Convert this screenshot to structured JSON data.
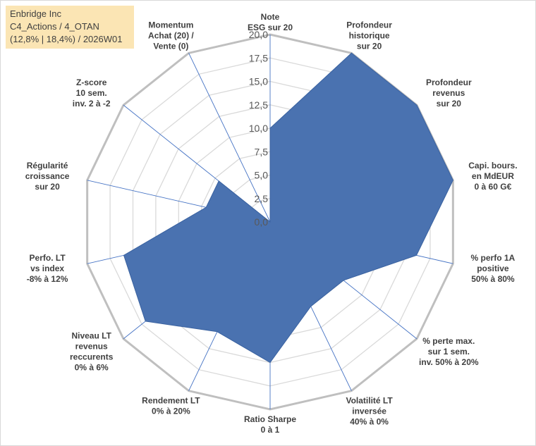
{
  "header": {
    "line1": "Enbridge Inc",
    "line2": "C4_Actions / 4_OTAN",
    "line3": "(12,8% | 18,4%) / 2026W01"
  },
  "colors": {
    "series_fill": "#4a72b0",
    "series_stroke": "#3a62a0",
    "grid_outer": "#bfbfbf",
    "grid_inner": "#d9d9d9",
    "spoke": "#4472c4",
    "info_bg": "#fbe5b4"
  },
  "chart_data": {
    "type": "radar",
    "scale_min": 0,
    "scale_max": 20,
    "tick_labels": [
      "0,0",
      "2,5",
      "5,0",
      "7,5",
      "10,0",
      "12,5",
      "15,0",
      "17,5",
      "20,0"
    ],
    "axes": [
      [
        "Note",
        "ESG sur 20"
      ],
      [
        "Profondeur",
        "historique",
        "sur 20"
      ],
      [
        "Profondeur",
        "revenus",
        "sur 20"
      ],
      [
        "Capi. bours.",
        "en MdEUR",
        "0 à 60 G€"
      ],
      [
        "% perfo 1A",
        "positive",
        "50% à 80%"
      ],
      [
        "% perte max.",
        "sur 1 sem.",
        "inv. 50% à 20%"
      ],
      [
        "Volatilité LT",
        "inversée",
        "40% à 0%"
      ],
      [
        "Ratio Sharpe",
        "0 à 1"
      ],
      [
        "Rendement LT",
        "0% à 20%"
      ],
      [
        "Niveau LT",
        "revenus",
        "reccurents",
        "0% à 6%"
      ],
      [
        "Perfo. LT",
        "vs index",
        "-8% à 12%"
      ],
      [
        "Régularité",
        "croissance",
        "sur 20"
      ],
      [
        "Z-score",
        "10 sem.",
        "inv. 2 à -2"
      ],
      [
        "Momentum",
        "Achat (20) /",
        "Vente (0)"
      ]
    ],
    "values": [
      10.0,
      20.0,
      20.0,
      20.0,
      16.0,
      10.0,
      10.0,
      15.0,
      13.0,
      17.0,
      16.0,
      7.0,
      7.0,
      0.0
    ],
    "grid": true,
    "legend": "none"
  }
}
